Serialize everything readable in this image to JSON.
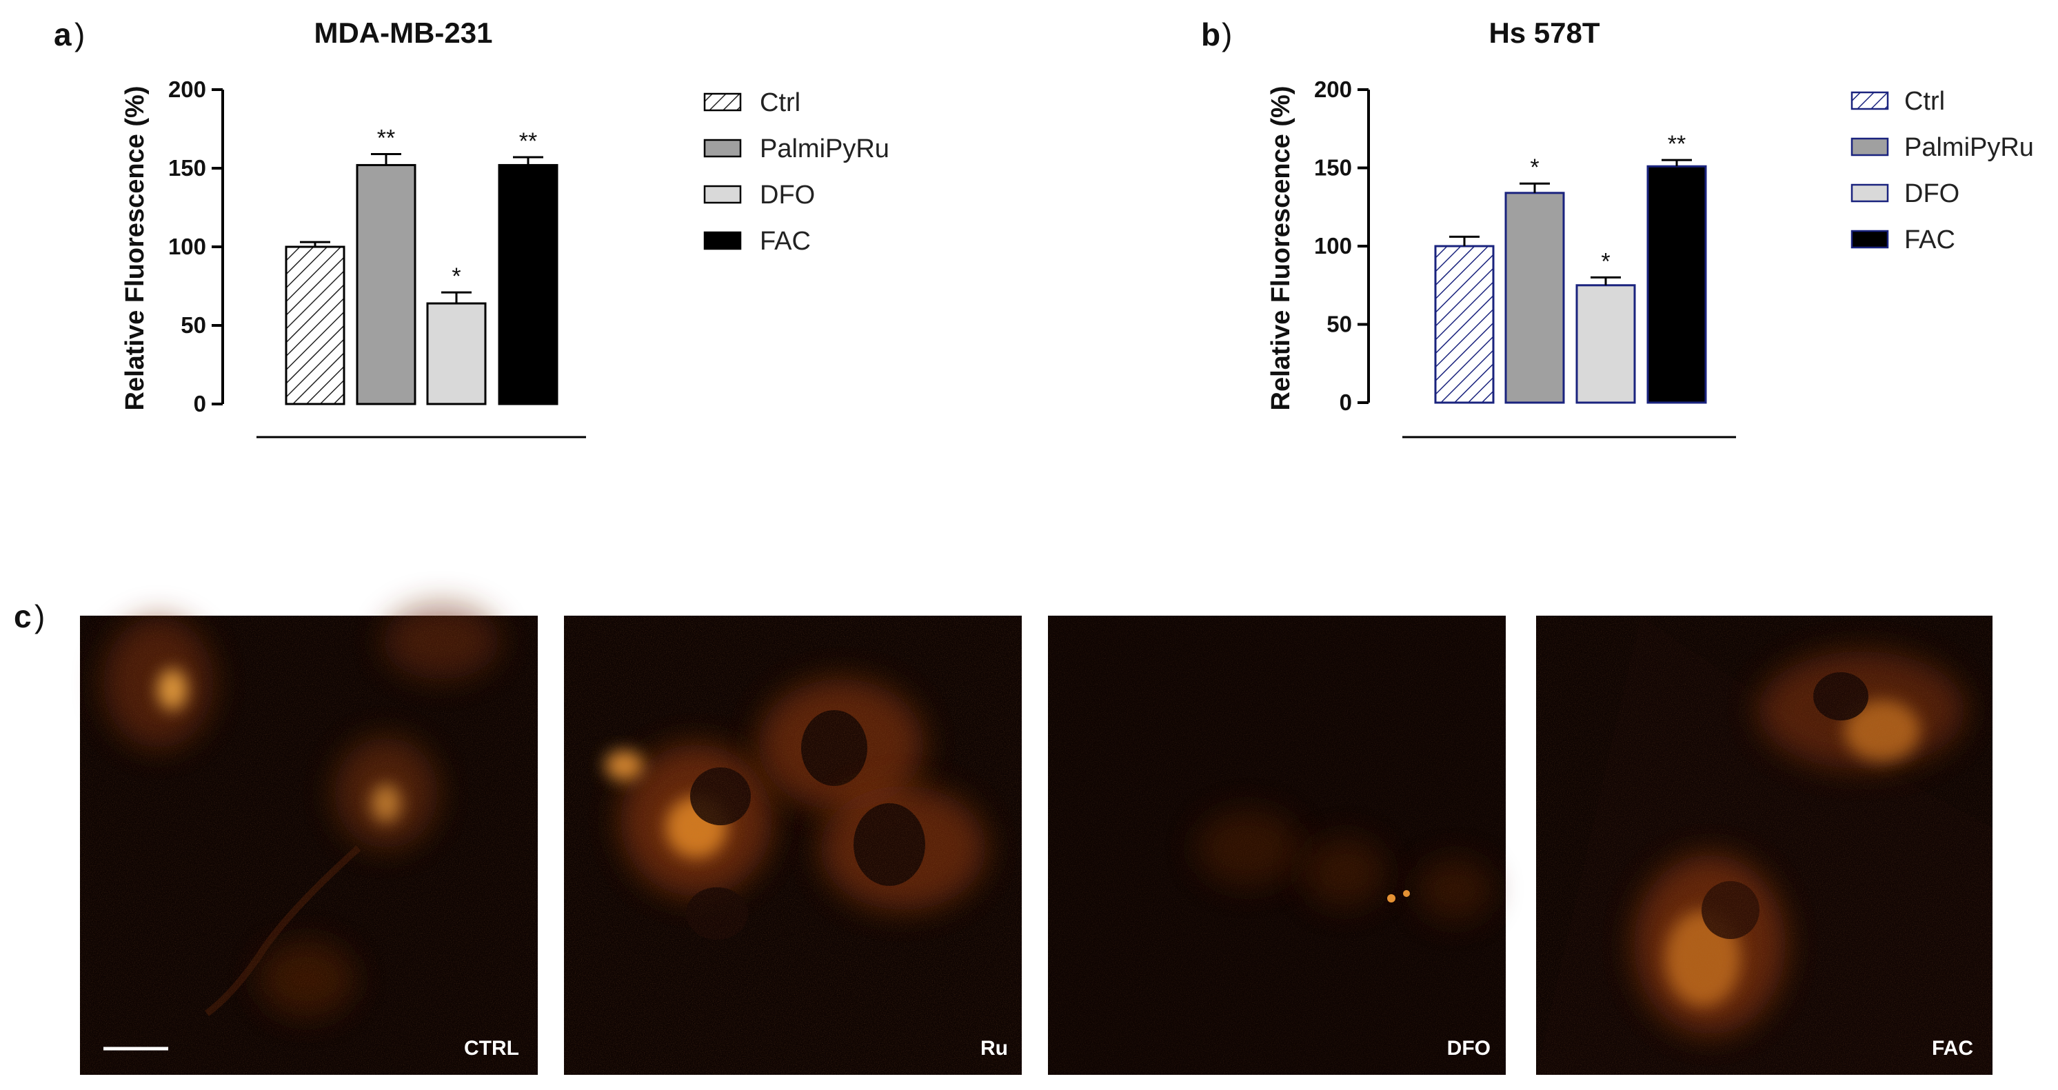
{
  "panels": {
    "a": {
      "letter": "a",
      "paren": ")"
    },
    "b": {
      "letter": "b",
      "paren": ")"
    },
    "c": {
      "letter": "c",
      "paren": ")"
    }
  },
  "chart_data": [
    {
      "type": "bar",
      "title": "MDA-MB-231",
      "xlabel": "",
      "ylabel": "Relative Fluorescence (%)",
      "ylim": [
        0,
        200
      ],
      "yticks": [
        "0",
        "50",
        "100",
        "150",
        "200"
      ],
      "categories": [
        "Ctrl",
        "PalmiPyRu",
        "DFO",
        "FAC"
      ],
      "values": [
        100,
        152,
        64,
        152
      ],
      "errors": [
        3,
        7,
        7,
        5
      ],
      "significance": [
        "",
        "**",
        "*",
        "**"
      ],
      "fills": [
        "hatch",
        "#a0a0a0",
        "#d9d9d9",
        "#000000"
      ],
      "edge_color": "#000000",
      "legend": [
        "Ctrl",
        "PalmiPyRu",
        "DFO",
        "FAC"
      ],
      "legend_placement": "right",
      "grid": false
    },
    {
      "type": "bar",
      "title": "Hs 578T",
      "xlabel": "",
      "ylabel": "Relative Fluorescence (%)",
      "ylim": [
        0,
        200
      ],
      "yticks": [
        "0",
        "50",
        "100",
        "150",
        "200"
      ],
      "categories": [
        "Ctrl",
        "PalmiPyRu",
        "DFO",
        "FAC"
      ],
      "values": [
        100,
        134,
        75,
        151
      ],
      "errors": [
        6,
        6,
        5,
        4
      ],
      "significance": [
        "",
        "*",
        "*",
        "**"
      ],
      "fills": [
        "hatch",
        "#a0a0a0",
        "#d9d9d9",
        "#000000"
      ],
      "edge_color": "#1a237e",
      "legend": [
        "Ctrl",
        "PalmiPyRu",
        "DFO",
        "FAC"
      ],
      "legend_placement": "right",
      "grid": false
    }
  ],
  "micrographs": {
    "labels": [
      "CTRL",
      "Ru",
      "DFO",
      "FAC"
    ],
    "background": "#0e0402",
    "signal_color": "#ff9a2a",
    "scale_bar": true
  }
}
